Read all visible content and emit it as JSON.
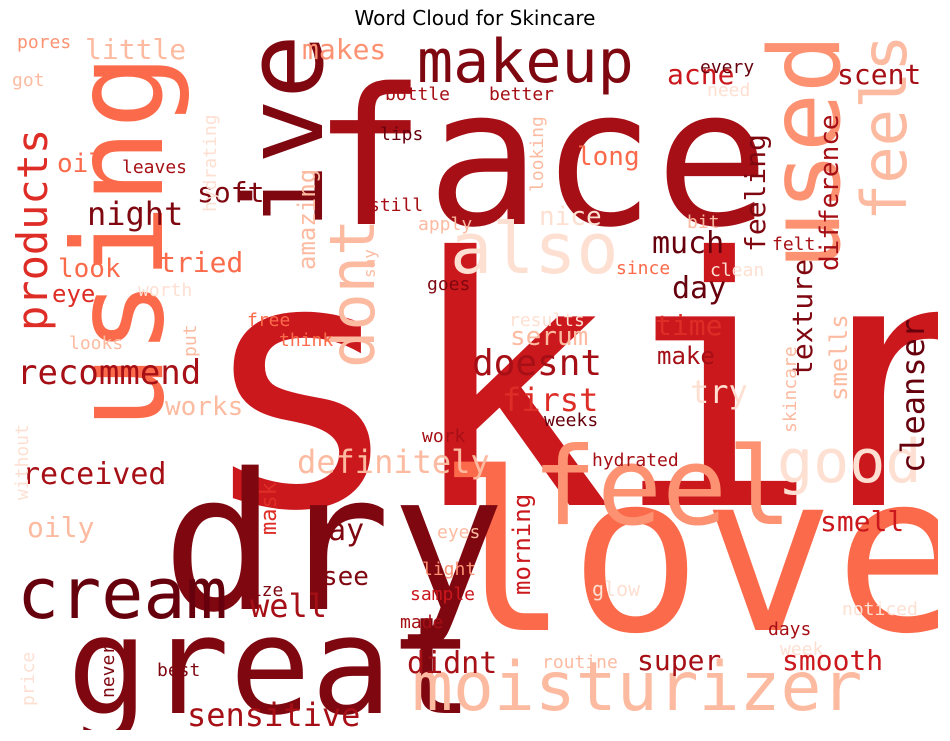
{
  "title": "Word Cloud for Skincare",
  "colors": {
    "deep": "#67000d",
    "dark": "#7f0710",
    "darkred": "#a50f15",
    "red": "#cb181d",
    "brightred": "#de2d26",
    "orange": "#fb6a4a",
    "salmon": "#fc9272",
    "light": "#fcbba1",
    "pale": "#fee0d2"
  },
  "words": [
    {
      "text": "skin"
    },
    {
      "text": "love"
    },
    {
      "text": "face"
    },
    {
      "text": "using"
    },
    {
      "text": "dry"
    },
    {
      "text": "great"
    },
    {
      "text": "ive"
    },
    {
      "text": "used"
    },
    {
      "text": "feel"
    },
    {
      "text": "moisturizer"
    },
    {
      "text": "makeup"
    },
    {
      "text": "cream"
    },
    {
      "text": "feels"
    },
    {
      "text": "also"
    },
    {
      "text": "good"
    },
    {
      "text": "dont"
    },
    {
      "text": "products"
    },
    {
      "text": "recommend"
    },
    {
      "text": "definitely"
    },
    {
      "text": "sensitive"
    },
    {
      "text": "cleanser"
    },
    {
      "text": "doesnt"
    },
    {
      "text": "first"
    },
    {
      "text": "much"
    },
    {
      "text": "received"
    },
    {
      "text": "night"
    },
    {
      "text": "feeling"
    },
    {
      "text": "well"
    },
    {
      "text": "didnt"
    },
    {
      "text": "super"
    },
    {
      "text": "smooth"
    },
    {
      "text": "texture"
    },
    {
      "text": "difference"
    },
    {
      "text": "scent"
    },
    {
      "text": "smell"
    },
    {
      "text": "acne"
    },
    {
      "text": "little"
    },
    {
      "text": "makes"
    },
    {
      "text": "soft"
    },
    {
      "text": "amazing"
    },
    {
      "text": "tried"
    },
    {
      "text": "look"
    },
    {
      "text": "eye"
    },
    {
      "text": "oil"
    },
    {
      "text": "long"
    },
    {
      "text": "nice"
    },
    {
      "text": "day"
    },
    {
      "text": "time"
    },
    {
      "text": "make"
    },
    {
      "text": "serum"
    },
    {
      "text": "try"
    },
    {
      "text": "smells"
    },
    {
      "text": "works"
    },
    {
      "text": "way"
    },
    {
      "text": "see"
    },
    {
      "text": "mask"
    },
    {
      "text": "morning"
    },
    {
      "text": "oily"
    },
    {
      "text": "hydrated"
    },
    {
      "text": "weeks"
    },
    {
      "text": "work"
    },
    {
      "text": "lips"
    },
    {
      "text": "bottle"
    },
    {
      "text": "better"
    },
    {
      "text": "every"
    },
    {
      "text": "leaves"
    },
    {
      "text": "still"
    },
    {
      "text": "apply"
    },
    {
      "text": "bit"
    },
    {
      "text": "felt"
    },
    {
      "text": "since"
    },
    {
      "text": "clean"
    },
    {
      "text": "goes"
    },
    {
      "text": "free"
    },
    {
      "text": "think"
    },
    {
      "text": "looks"
    },
    {
      "text": "results"
    },
    {
      "text": "pores"
    },
    {
      "text": "got"
    },
    {
      "text": "need"
    },
    {
      "text": "hydrating"
    },
    {
      "text": "looking"
    },
    {
      "text": "say"
    },
    {
      "text": "worth"
    },
    {
      "text": "put"
    },
    {
      "text": "skincare"
    },
    {
      "text": "eyes"
    },
    {
      "text": "light"
    },
    {
      "text": "sample"
    },
    {
      "text": "made"
    },
    {
      "text": "size"
    },
    {
      "text": "glow"
    },
    {
      "text": "days"
    },
    {
      "text": "noticed"
    },
    {
      "text": "week"
    },
    {
      "text": "routine"
    },
    {
      "text": "best"
    },
    {
      "text": "never"
    },
    {
      "text": "price"
    },
    {
      "text": "without"
    }
  ]
}
